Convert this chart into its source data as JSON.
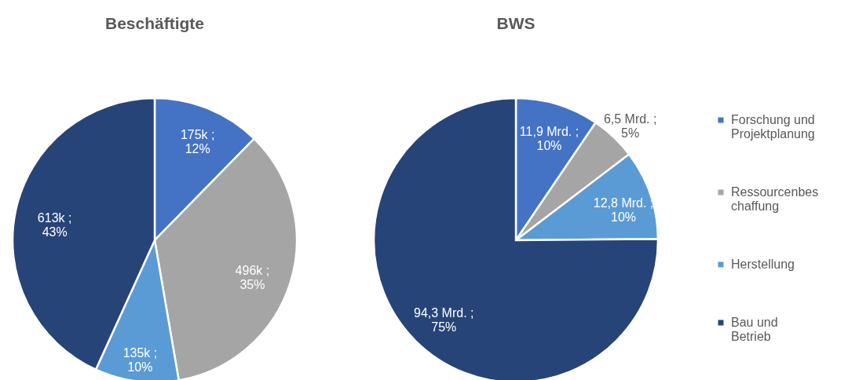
{
  "chart_data": [
    {
      "type": "pie",
      "title": "Beschäftigte",
      "categories": [
        null,
        null,
        null,
        null
      ],
      "values": [
        175000,
        496000,
        135000,
        613000
      ],
      "colors": [
        "#4472c4",
        "#a5a5a5",
        "#5b9bd5",
        "#264478"
      ],
      "value_labels": [
        "175k ;\n12%",
        "496k ;\n35%",
        "135k ;\n10%",
        "613k ;\n43%"
      ]
    },
    {
      "type": "pie",
      "title": "BWS",
      "categories": [
        "Forschung und Projektplanung",
        "Ressourcenbeschaffung",
        "Herstellung",
        "Bau und Betrieb"
      ],
      "values": [
        11.9,
        6.5,
        12.8,
        94.3
      ],
      "colors": [
        "#4472c4",
        "#a5a5a5",
        "#5b9bd5",
        "#264478"
      ],
      "value_labels": [
        "11,9 Mrd. ;\n10%",
        "6,5 Mrd. ;\n5%",
        "12,8 Mrd. ;\n10%",
        "94,3 Mrd. ;\n75%"
      ],
      "legend": "right"
    }
  ]
}
